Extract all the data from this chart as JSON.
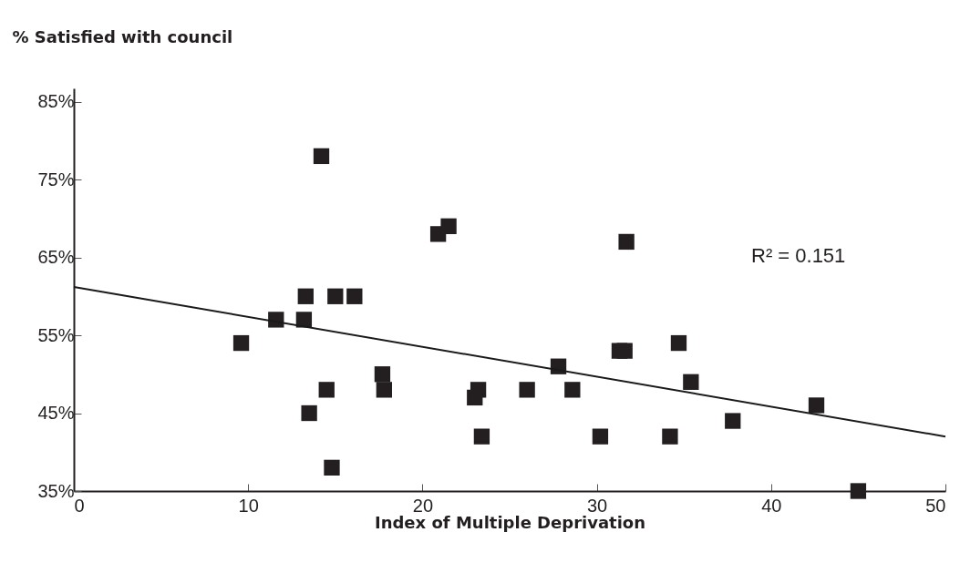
{
  "chart_data": {
    "type": "scatter",
    "ylabel": "% Satisfied with council",
    "xlabel": "Index of Multiple Deprivation",
    "xlim": [
      0,
      50
    ],
    "xticks": [
      0,
      10,
      20,
      30,
      40,
      50
    ],
    "ylim": [
      35,
      86.7
    ],
    "yticks": [
      {
        "value": 35,
        "label": "35%"
      },
      {
        "value": 45,
        "label": "45%"
      },
      {
        "value": 55,
        "label": "55%"
      },
      {
        "value": 65,
        "label": "65%"
      },
      {
        "value": 75,
        "label": "75%"
      },
      {
        "value": 85,
        "label": "85%"
      }
    ],
    "grid": false,
    "annotations": [
      "R² = 0.151"
    ],
    "series": [
      {
        "marker": "square",
        "color": "#231f20",
        "x": [
          9.6,
          11.6,
          13.2,
          13.3,
          13.5,
          14.2,
          14.5,
          14.8,
          15.0,
          16.1,
          17.7,
          17.8,
          20.9,
          21.5,
          23.0,
          23.2,
          23.4,
          26.0,
          27.8,
          28.6,
          30.2,
          31.3,
          31.6,
          31.7,
          34.2,
          34.7,
          35.4,
          37.8,
          42.6,
          45.0
        ],
        "values": [
          54,
          57,
          57,
          60,
          45,
          78,
          48,
          38,
          60,
          60,
          50,
          48,
          68,
          69,
          47,
          48,
          42,
          48,
          51,
          48,
          42,
          53,
          53,
          67,
          42,
          54,
          49,
          44,
          46,
          35
        ]
      },
      {
        "type": "line",
        "marker": "none",
        "color": "#1a1a1a",
        "x": [
          0,
          50
        ],
        "values": [
          61.2,
          42.0
        ]
      }
    ]
  }
}
